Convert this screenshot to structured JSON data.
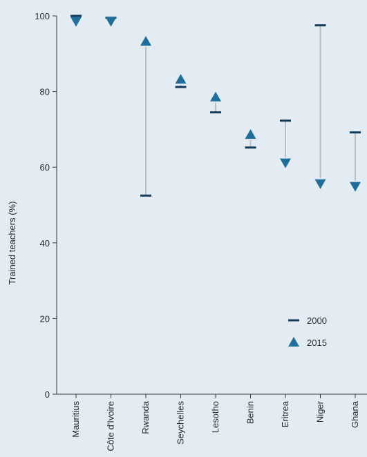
{
  "chart_data": {
    "type": "dumbbell",
    "ylabel": "Trained teachers (%)",
    "ylim": [
      0,
      100
    ],
    "yticks": [
      0,
      20,
      40,
      60,
      80,
      100
    ],
    "categories": [
      "Mauritius",
      "Côte d'Ivoire",
      "Rwanda",
      "Seychelles",
      "Lesotho",
      "Benin",
      "Eritrea",
      "Niger",
      "Ghana"
    ],
    "series": [
      {
        "name": "2000",
        "marker": "dash",
        "values": [
          100,
          99.5,
          52.5,
          81.2,
          74.5,
          65.2,
          72.3,
          97.5,
          69.2
        ]
      },
      {
        "name": "2015",
        "marker": "triangle",
        "values": [
          98.6,
          98.6,
          93.2,
          83.2,
          78.5,
          68.6,
          61.2,
          55.7,
          55.0
        ]
      }
    ],
    "legend": {
      "position": "bottom-right",
      "entries": [
        "2000",
        "2015"
      ]
    },
    "colors": {
      "series_2000": "#153b5a",
      "series_2015": "#1f6e9b",
      "connector": "#b9bec4",
      "axis": "#3a3a3a",
      "background": "#e3ecf2"
    }
  }
}
